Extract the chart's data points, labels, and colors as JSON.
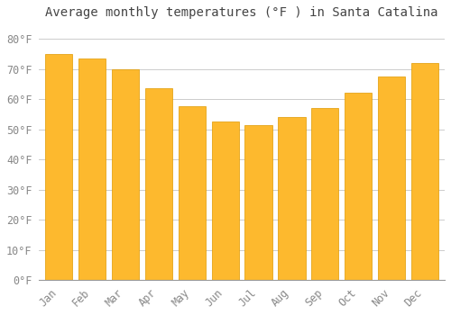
{
  "title": "Average monthly temperatures (°F ) in Santa Catalina",
  "months": [
    "Jan",
    "Feb",
    "Mar",
    "Apr",
    "May",
    "Jun",
    "Jul",
    "Aug",
    "Sep",
    "Oct",
    "Nov",
    "Dec"
  ],
  "values": [
    75,
    73.5,
    70,
    63.5,
    57.5,
    52.5,
    51.5,
    54,
    57,
    62,
    67.5,
    72
  ],
  "bar_color_top": "#FDB92E",
  "bar_color_bottom": "#F5A800",
  "bar_edge_color": "#E09A00",
  "background_color": "#FFFFFF",
  "plot_bg_color": "#FFFFFF",
  "grid_color": "#CCCCCC",
  "ylim": [
    0,
    85
  ],
  "yticks": [
    0,
    10,
    20,
    30,
    40,
    50,
    60,
    70,
    80
  ],
  "title_fontsize": 10,
  "tick_fontsize": 8.5,
  "title_color": "#444444",
  "tick_color": "#888888",
  "title_font": "monospace",
  "tick_font": "monospace",
  "bar_width": 0.82
}
